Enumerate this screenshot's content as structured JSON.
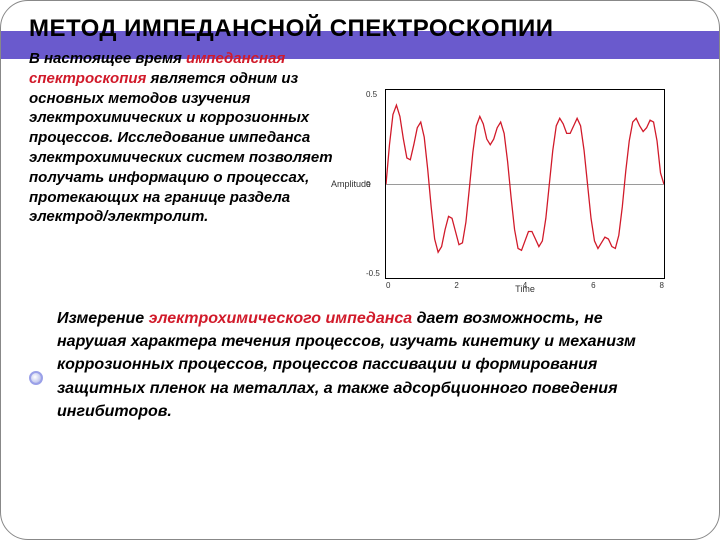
{
  "title": "МЕТОД ИМПЕДАНСНОЙ СПЕКТРОСКОПИИ",
  "paragraph1": {
    "lead": "В настоящее время ",
    "highlight": "импедансная спектроскопия",
    "rest": " является одним из основных методов изучения электрохимических и коррозионных процессов. Исследование импеданса электрохимических систем позволяет получать информацию о процессах, протекающих на границе раздела электрод/электролит."
  },
  "paragraph2": {
    "lead": "Измерение ",
    "highlight": "электрохимического импеданса",
    "rest": " дает возможность, не нарушая характера течения процессов, изучать кинетику и механизм коррозионных процессов, процессов пассивации и формирования защитных пленок на металлах, а также адсорбционного поведения ингибиторов."
  },
  "chart": {
    "type": "line",
    "ylabel": "Amplitude",
    "xlabel": "Time",
    "xlim": [
      0,
      8
    ],
    "ylim": [
      -0.5,
      0.5
    ],
    "yticks": [
      "0.5",
      "0",
      "-0.5"
    ],
    "xticks": [
      "0",
      "2",
      "4",
      "6",
      "8"
    ],
    "line_color": "#d11a2a",
    "line_width": 1.3,
    "background": "#ffffff",
    "axis_color": "#000000",
    "points": [
      [
        0.0,
        0.0
      ],
      [
        0.1,
        0.21
      ],
      [
        0.2,
        0.37
      ],
      [
        0.3,
        0.42
      ],
      [
        0.4,
        0.36
      ],
      [
        0.5,
        0.24
      ],
      [
        0.6,
        0.14
      ],
      [
        0.7,
        0.13
      ],
      [
        0.8,
        0.21
      ],
      [
        0.9,
        0.3
      ],
      [
        1.0,
        0.33
      ],
      [
        1.1,
        0.25
      ],
      [
        1.2,
        0.08
      ],
      [
        1.3,
        -0.12
      ],
      [
        1.4,
        -0.29
      ],
      [
        1.5,
        -0.36
      ],
      [
        1.6,
        -0.33
      ],
      [
        1.7,
        -0.24
      ],
      [
        1.8,
        -0.17
      ],
      [
        1.9,
        -0.18
      ],
      [
        2.0,
        -0.25
      ],
      [
        2.1,
        -0.32
      ],
      [
        2.2,
        -0.31
      ],
      [
        2.3,
        -0.2
      ],
      [
        2.4,
        -0.02
      ],
      [
        2.5,
        0.17
      ],
      [
        2.6,
        0.31
      ],
      [
        2.7,
        0.36
      ],
      [
        2.8,
        0.32
      ],
      [
        2.9,
        0.24
      ],
      [
        3.0,
        0.21
      ],
      [
        3.1,
        0.24
      ],
      [
        3.2,
        0.3
      ],
      [
        3.3,
        0.33
      ],
      [
        3.4,
        0.27
      ],
      [
        3.5,
        0.12
      ],
      [
        3.6,
        -0.07
      ],
      [
        3.7,
        -0.24
      ],
      [
        3.8,
        -0.34
      ],
      [
        3.9,
        -0.35
      ],
      [
        4.0,
        -0.3
      ],
      [
        4.1,
        -0.25
      ],
      [
        4.2,
        -0.25
      ],
      [
        4.3,
        -0.29
      ],
      [
        4.4,
        -0.33
      ],
      [
        4.5,
        -0.3
      ],
      [
        4.6,
        -0.18
      ],
      [
        4.7,
        0.0
      ],
      [
        4.8,
        0.18
      ],
      [
        4.9,
        0.31
      ],
      [
        5.0,
        0.35
      ],
      [
        5.1,
        0.32
      ],
      [
        5.2,
        0.27
      ],
      [
        5.3,
        0.27
      ],
      [
        5.4,
        0.31
      ],
      [
        5.5,
        0.35
      ],
      [
        5.6,
        0.31
      ],
      [
        5.7,
        0.18
      ],
      [
        5.8,
        0.0
      ],
      [
        5.9,
        -0.18
      ],
      [
        6.0,
        -0.3
      ],
      [
        6.1,
        -0.34
      ],
      [
        6.2,
        -0.31
      ],
      [
        6.3,
        -0.28
      ],
      [
        6.4,
        -0.29
      ],
      [
        6.5,
        -0.33
      ],
      [
        6.6,
        -0.34
      ],
      [
        6.7,
        -0.27
      ],
      [
        6.8,
        -0.12
      ],
      [
        6.9,
        0.07
      ],
      [
        7.0,
        0.23
      ],
      [
        7.1,
        0.33
      ],
      [
        7.2,
        0.35
      ],
      [
        7.3,
        0.31
      ],
      [
        7.4,
        0.28
      ],
      [
        7.5,
        0.3
      ],
      [
        7.6,
        0.34
      ],
      [
        7.7,
        0.33
      ],
      [
        7.8,
        0.23
      ],
      [
        7.9,
        0.06
      ],
      [
        8.0,
        0.0
      ]
    ]
  },
  "colors": {
    "band": "#6a5acd",
    "red": "#d11a2a"
  }
}
